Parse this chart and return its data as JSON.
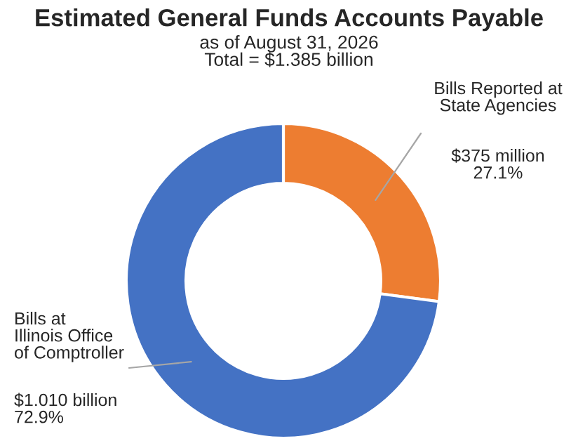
{
  "chart_data": {
    "type": "donut",
    "title": "Estimated General Funds Accounts Payable",
    "subtitle": "as of August 31, 2026\nTotal = $1.385 billion",
    "categories": [
      "Bills Reported at State Agencies",
      "Bills at Illinois Office of Comptroller"
    ],
    "values": [
      27.1,
      72.9
    ],
    "colors": [
      "#ed7d31",
      "#4472c4"
    ],
    "value_labels": [
      "$375 million\n27.1%",
      "$1.010 billion\n72.9%"
    ]
  }
}
